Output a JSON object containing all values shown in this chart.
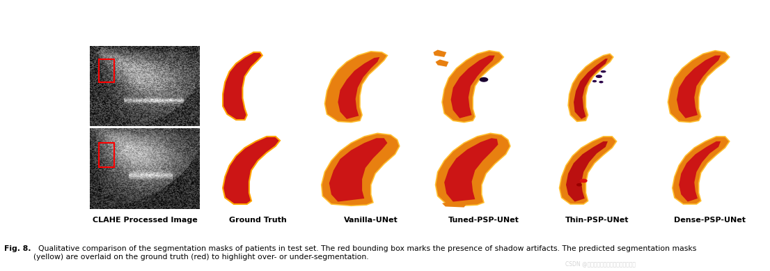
{
  "col_labels": [
    "CLAHE Processed Image",
    "Ground Truth",
    "Vanilla-UNet",
    "Tuned-PSP-UNet",
    "Thin-PSP-UNet",
    "Dense-PSP-UNet"
  ],
  "caption_bold": "Fig. 8.",
  "caption_text": "  Qualitative comparison of the segmentation masks of patients in test set. The red bounding box marks the presence of shadow artifacts. The predicted segmentation masks\n(yellow) are overlaid on the ground truth (red) to highlight over- or under-segmentation.",
  "bg_color": "#FFFFFF",
  "purple_bg": "#3D0060",
  "label_fontsize": 8.0,
  "caption_fontsize": 7.8,
  "watermark": "CSDN @我在努力学习分割（浅上窥水平）"
}
